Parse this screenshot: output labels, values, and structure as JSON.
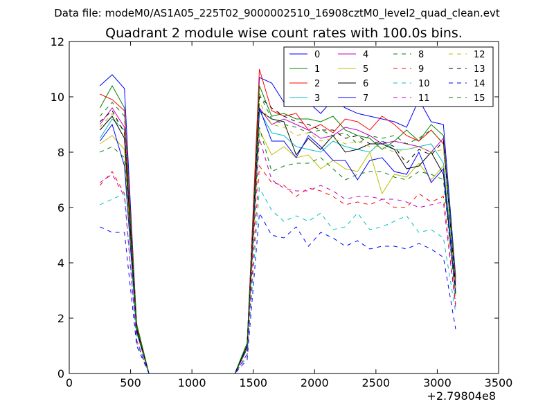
{
  "chart_data": {
    "type": "line",
    "suptitle": "Data file: modeM0/AS1A05_225T02_9000002510_16908cztM0_level2_quad_clean.evt",
    "title": "Quadrant 2 module wise count rates with 100.0s bins.",
    "xlabel": "",
    "ylabel": "",
    "x_offset_label": "+2.79804e8",
    "xlim": [
      0,
      3500
    ],
    "ylim": [
      0,
      12
    ],
    "xticks": [
      0,
      500,
      1000,
      1500,
      2000,
      2500,
      3000,
      3500
    ],
    "yticks": [
      0,
      2,
      4,
      6,
      8,
      10,
      12
    ],
    "grid": false,
    "legend_position": "top-right",
    "x": [
      250,
      350,
      450,
      550,
      650,
      750,
      850,
      950,
      1050,
      1150,
      1250,
      1350,
      1450,
      1550,
      1650,
      1750,
      1850,
      1950,
      2050,
      2150,
      2250,
      2350,
      2450,
      2550,
      2650,
      2750,
      2850,
      2950,
      3050,
      3150
    ],
    "series": [
      {
        "name": "0",
        "color": "#0000ff",
        "dash": "solid",
        "values": [
          10.4,
          10.8,
          10.3,
          1.7,
          0,
          0,
          0,
          0,
          0,
          0,
          0,
          0,
          1.1,
          10.7,
          10.5,
          9.8,
          10.4,
          9.8,
          9.4,
          9.9,
          9.6,
          9.4,
          9.3,
          9.2,
          9.1,
          8.9,
          9.9,
          9.1,
          9.0,
          3.5
        ]
      },
      {
        "name": "1",
        "color": "#008000",
        "dash": "solid",
        "values": [
          9.6,
          10.4,
          9.6,
          1.8,
          0,
          0,
          0,
          0,
          0,
          0,
          0,
          0,
          1.1,
          10.4,
          9.3,
          9.4,
          9.2,
          9.2,
          9.1,
          9.3,
          8.8,
          8.6,
          8.5,
          8.1,
          8.4,
          8.8,
          8.4,
          9.0,
          8.6,
          3.4
        ]
      },
      {
        "name": "2",
        "color": "#ff0000",
        "dash": "solid",
        "values": [
          10.1,
          9.9,
          9.5,
          1.7,
          0,
          0,
          0,
          0,
          0,
          0,
          0,
          0,
          1.0,
          11.0,
          9.5,
          9.3,
          9.4,
          8.8,
          9.0,
          8.7,
          9.2,
          9.1,
          8.8,
          9.3,
          9.0,
          8.6,
          8.4,
          8.8,
          8.3,
          3.3
        ]
      },
      {
        "name": "3",
        "color": "#00bfbf",
        "dash": "solid",
        "values": [
          8.5,
          9.2,
          8.8,
          1.5,
          0,
          0,
          0,
          0,
          0,
          0,
          0,
          0,
          0.9,
          9.5,
          8.7,
          8.6,
          8.2,
          8.1,
          8.0,
          8.4,
          8.2,
          8.1,
          8.0,
          8.4,
          8.1,
          8.1,
          8.2,
          8.3,
          7.6,
          3.0
        ]
      },
      {
        "name": "4",
        "color": "#bf00bf",
        "dash": "solid",
        "values": [
          9.0,
          9.6,
          8.9,
          1.6,
          0,
          0,
          0,
          0,
          0,
          0,
          0,
          0,
          1.0,
          9.6,
          9.0,
          9.2,
          9.0,
          8.8,
          8.5,
          8.6,
          8.9,
          8.8,
          8.6,
          8.3,
          8.4,
          8.3,
          8.2,
          8.0,
          8.5,
          3.1
        ]
      },
      {
        "name": "5",
        "color": "#bfbf00",
        "dash": "solid",
        "values": [
          8.3,
          8.6,
          8.1,
          1.5,
          0,
          0,
          0,
          0,
          0,
          0,
          0,
          0,
          0.9,
          8.8,
          7.9,
          8.2,
          7.8,
          7.9,
          7.4,
          7.7,
          7.4,
          7.3,
          8.0,
          6.5,
          7.2,
          7.1,
          7.6,
          7.0,
          7.5,
          2.8
        ]
      },
      {
        "name": "6",
        "color": "#000000",
        "dash": "solid",
        "values": [
          8.8,
          9.3,
          8.5,
          1.6,
          0,
          0,
          0,
          0,
          0,
          0,
          0,
          0,
          1.0,
          9.5,
          9.2,
          9.1,
          7.9,
          8.5,
          8.1,
          8.6,
          8.0,
          8.1,
          8.3,
          8.3,
          8.1,
          7.4,
          7.5,
          8.0,
          7.2,
          2.9
        ]
      },
      {
        "name": "7",
        "color": "#0000ff",
        "dash": "solid",
        "values": [
          8.4,
          9.0,
          7.5,
          1.5,
          0,
          0,
          0,
          0,
          0,
          0,
          0,
          0,
          0.9,
          9.6,
          8.4,
          8.4,
          7.8,
          8.6,
          8.2,
          7.7,
          7.7,
          7.0,
          7.7,
          7.8,
          7.3,
          7.2,
          8.0,
          6.9,
          7.4,
          2.9
        ]
      },
      {
        "name": "8",
        "color": "#008000",
        "dash": "dashed",
        "values": [
          9.3,
          9.8,
          9.3,
          1.7,
          0,
          0,
          0,
          0,
          0,
          0,
          0,
          0,
          1.1,
          10.1,
          9.2,
          9.0,
          8.9,
          8.7,
          8.8,
          8.6,
          8.7,
          8.3,
          8.6,
          8.5,
          8.6,
          8.3,
          8.5,
          8.8,
          8.3,
          3.2
        ]
      },
      {
        "name": "9",
        "color": "#ff0000",
        "dash": "dashed",
        "values": [
          6.8,
          7.3,
          6.5,
          1.2,
          0,
          0,
          0,
          0,
          0,
          0,
          0,
          0,
          0.7,
          7.5,
          6.9,
          6.8,
          6.4,
          6.7,
          6.6,
          6.4,
          6.1,
          6.2,
          6.1,
          6.3,
          6.0,
          6.0,
          6.5,
          6.2,
          6.4,
          2.5
        ]
      },
      {
        "name": "10",
        "color": "#00bfbf",
        "dash": "dashed",
        "values": [
          6.1,
          6.3,
          6.5,
          1.1,
          0,
          0,
          0,
          0,
          0,
          0,
          0,
          0,
          0.6,
          6.7,
          5.9,
          5.5,
          5.7,
          5.5,
          5.8,
          5.2,
          5.3,
          5.8,
          5.2,
          5.3,
          5.5,
          5.7,
          5.1,
          5.2,
          4.9,
          2.2
        ]
      },
      {
        "name": "11",
        "color": "#bf00bf",
        "dash": "dashed",
        "values": [
          6.9,
          7.2,
          6.4,
          1.2,
          0,
          0,
          0,
          0,
          0,
          0,
          0,
          0,
          0.7,
          8.5,
          7.0,
          6.7,
          6.6,
          6.6,
          6.8,
          6.6,
          6.3,
          6.4,
          6.4,
          6.3,
          6.3,
          6.2,
          6.0,
          6.1,
          6.2,
          2.4
        ]
      },
      {
        "name": "12",
        "color": "#bfbf00",
        "dash": "dashed",
        "values": [
          8.9,
          9.4,
          8.7,
          1.6,
          0,
          0,
          0,
          0,
          0,
          0,
          0,
          0,
          1.0,
          9.8,
          9.0,
          8.9,
          8.6,
          8.7,
          8.4,
          8.5,
          8.3,
          8.4,
          8.2,
          8.2,
          8.0,
          8.1,
          8.2,
          8.0,
          8.1,
          3.0
        ]
      },
      {
        "name": "13",
        "color": "#000000",
        "dash": "dashed",
        "values": [
          9.1,
          9.5,
          8.7,
          1.6,
          0,
          0,
          0,
          0,
          0,
          0,
          0,
          0,
          1.0,
          10.0,
          9.6,
          9.3,
          9.1,
          9.0,
          8.8,
          8.8,
          8.5,
          8.6,
          8.3,
          8.4,
          8.2,
          7.6,
          8.1,
          7.9,
          8.4,
          3.1
        ]
      },
      {
        "name": "14",
        "color": "#0000ff",
        "dash": "dashed",
        "values": [
          5.3,
          5.1,
          5.1,
          1.0,
          0,
          0,
          0,
          0,
          0,
          0,
          0,
          0,
          0.5,
          5.8,
          5.0,
          4.9,
          5.3,
          4.6,
          5.1,
          4.9,
          4.6,
          4.8,
          4.5,
          4.6,
          4.6,
          4.5,
          4.7,
          4.5,
          4.2,
          1.6
        ]
      },
      {
        "name": "15",
        "color": "#008000",
        "dash": "dashed",
        "values": [
          8.0,
          8.2,
          7.8,
          1.5,
          0,
          0,
          0,
          0,
          0,
          0,
          0,
          0,
          0.9,
          8.9,
          7.3,
          7.5,
          7.6,
          7.6,
          7.8,
          7.4,
          7.0,
          7.2,
          7.3,
          7.3,
          7.1,
          7.0,
          7.3,
          7.2,
          7.0,
          2.7
        ]
      }
    ]
  }
}
